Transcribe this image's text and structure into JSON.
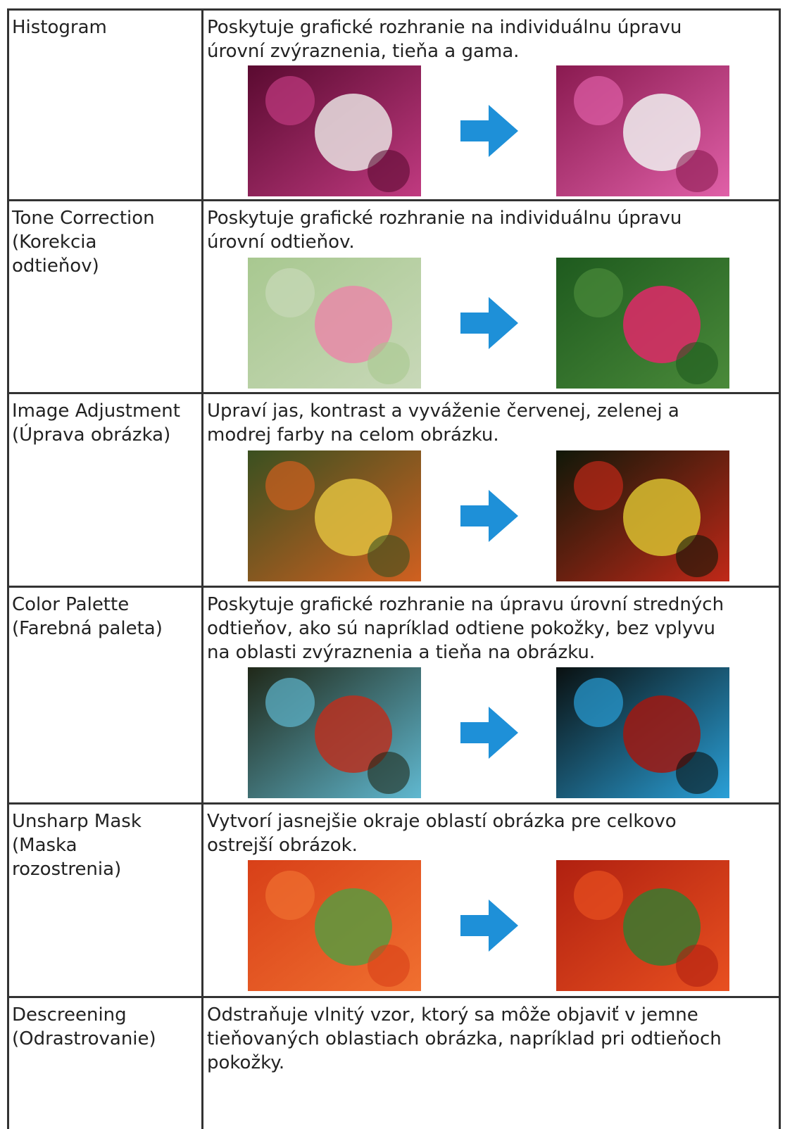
{
  "table": {
    "rows": [
      {
        "name": [
          "Histogram"
        ],
        "description": [
          "Poskytuje grafické rozhranie na individuálnu úpravu",
          "úrovní zvýraznenia, tieňa a gama."
        ]
      },
      {
        "name": [
          "Tone Correction",
          "(Korekcia",
          "odtieňov)"
        ],
        "description": [
          "Poskytuje grafické rozhranie na individuálnu úpravu",
          "úrovní odtieňov."
        ]
      },
      {
        "name": [
          "Image Adjustment",
          "(Úprava obrázka)"
        ],
        "description": [
          "Upraví jas, kontrast a vyváženie červenej, zelenej a",
          "modrej farby na celom obrázku."
        ]
      },
      {
        "name": [
          "Color Palette",
          "(Farebná paleta)"
        ],
        "description": [
          "Poskytuje grafické rozhranie na úpravu úrovní stredných",
          "odtieňov, ako sú napríklad odtiene pokožky, bez vplyvu",
          "na oblasti zvýraznenia a tieňa na obrázku."
        ]
      },
      {
        "name": [
          "Unsharp Mask",
          "(Maska",
          "rozostrenia)"
        ],
        "description": [
          "Vytvorí jasnejšie okraje oblastí obrázka pre celkovo",
          "ostrejší obrázok."
        ]
      },
      {
        "name": [
          "Descreening",
          "(Odrastrovanie)"
        ],
        "description": [
          "Odstraňuje vlnitý vzor, ktorý sa môže objaviť v jemne",
          "tieňovaných oblastiach obrázka, napríklad pri odtieňoch",
          "pokožky."
        ]
      }
    ]
  }
}
